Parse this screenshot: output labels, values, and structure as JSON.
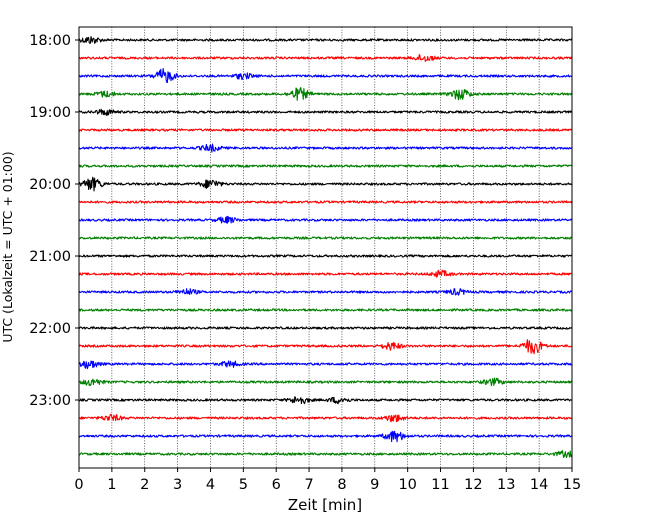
{
  "chart_data": {
    "type": "line",
    "title": "",
    "xlabel": "Zeit  [min]",
    "ylabel": "UTC (Lokalzeit = UTC + 01:00)",
    "xlim": [
      0,
      15
    ],
    "x_ticks": [
      "0",
      "1",
      "2",
      "3",
      "4",
      "5",
      "6",
      "7",
      "8",
      "9",
      "10",
      "11",
      "12",
      "13",
      "14",
      "15"
    ],
    "grid": "vertical dotted at each minute",
    "y_tick_labels": [
      "18:00",
      "19:00",
      "20:00",
      "21:00",
      "22:00",
      "23:00"
    ],
    "trace_interval_minutes": 15,
    "start_time": "18:00",
    "colors": [
      "#000000",
      "#ff0000",
      "#0000ff",
      "#008000"
    ],
    "traces": [
      {
        "time": "18:00",
        "color": "#000000",
        "events": [
          [
            0.35,
            1.3
          ]
        ]
      },
      {
        "time": "18:15",
        "color": "#ff0000",
        "events": [
          [
            10.5,
            1.2
          ]
        ]
      },
      {
        "time": "18:30",
        "color": "#0000ff",
        "events": [
          [
            2.6,
            2.6
          ],
          [
            5.0,
            1.0
          ]
        ]
      },
      {
        "time": "18:45",
        "color": "#008000",
        "events": [
          [
            0.8,
            1.0
          ],
          [
            6.7,
            2.2
          ],
          [
            11.6,
            2.0
          ]
        ]
      },
      {
        "time": "19:00",
        "color": "#000000",
        "events": [
          [
            0.8,
            1.0
          ]
        ]
      },
      {
        "time": "19:15",
        "color": "#ff0000",
        "events": []
      },
      {
        "time": "19:30",
        "color": "#0000ff",
        "events": [
          [
            4.0,
            1.2
          ]
        ]
      },
      {
        "time": "19:45",
        "color": "#008000",
        "events": []
      },
      {
        "time": "20:00",
        "color": "#000000",
        "events": [
          [
            0.4,
            2.4
          ],
          [
            4.0,
            1.6
          ]
        ]
      },
      {
        "time": "20:15",
        "color": "#ff0000",
        "events": []
      },
      {
        "time": "20:30",
        "color": "#0000ff",
        "events": [
          [
            4.5,
            1.1
          ]
        ]
      },
      {
        "time": "20:45",
        "color": "#008000",
        "events": []
      },
      {
        "time": "21:00",
        "color": "#000000",
        "events": []
      },
      {
        "time": "21:15",
        "color": "#ff0000",
        "events": [
          [
            11.0,
            1.1
          ]
        ]
      },
      {
        "time": "21:30",
        "color": "#0000ff",
        "events": [
          [
            3.3,
            1.0
          ],
          [
            11.5,
            1.0
          ]
        ]
      },
      {
        "time": "21:45",
        "color": "#008000",
        "events": []
      },
      {
        "time": "22:00",
        "color": "#000000",
        "events": []
      },
      {
        "time": "22:15",
        "color": "#ff0000",
        "events": [
          [
            9.5,
            1.3
          ],
          [
            13.8,
            2.8
          ]
        ]
      },
      {
        "time": "22:30",
        "color": "#0000ff",
        "events": [
          [
            0.3,
            1.5
          ],
          [
            4.6,
            1.0
          ]
        ]
      },
      {
        "time": "22:45",
        "color": "#008000",
        "events": [
          [
            0.4,
            1.3
          ],
          [
            12.6,
            1.2
          ]
        ]
      },
      {
        "time": "23:00",
        "color": "#000000",
        "events": [
          [
            6.7,
            1.4
          ],
          [
            7.9,
            1.1
          ]
        ]
      },
      {
        "time": "23:15",
        "color": "#ff0000",
        "events": [
          [
            1.0,
            1.1
          ],
          [
            9.6,
            1.3
          ]
        ]
      },
      {
        "time": "23:30",
        "color": "#0000ff",
        "events": [
          [
            9.6,
            2.0
          ]
        ]
      },
      {
        "time": "23:45",
        "color": "#008000",
        "events": [
          [
            14.8,
            1.0
          ]
        ]
      }
    ]
  }
}
